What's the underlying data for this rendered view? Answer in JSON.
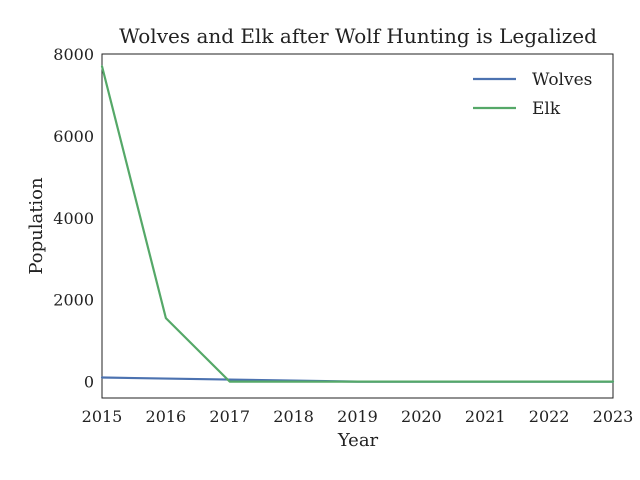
{
  "chart_data": {
    "type": "line",
    "title": "Wolves and Elk after Wolf Hunting is Legalized",
    "xlabel": "Year",
    "ylabel": "Population",
    "x": [
      2015,
      2016,
      2017,
      2018,
      2019,
      2020,
      2021,
      2022,
      2023
    ],
    "xlim": [
      2015,
      2023
    ],
    "ylim": [
      -400,
      8000
    ],
    "xticks": [
      "2015",
      "2016",
      "2017",
      "2018",
      "2019",
      "2020",
      "2021",
      "2022",
      "2023"
    ],
    "yticks": [
      {
        "value": 0,
        "label": "0"
      },
      {
        "value": 2000,
        "label": "2000"
      },
      {
        "value": 4000,
        "label": "4000"
      },
      {
        "value": 6000,
        "label": "6000"
      },
      {
        "value": 8000,
        "label": "8000"
      }
    ],
    "grid": false,
    "legend_position": "top-right",
    "series": [
      {
        "name": "Wolves",
        "color": "#4c72b0",
        "values": [
          100,
          75,
          50,
          25,
          0,
          0,
          0,
          0,
          0
        ]
      },
      {
        "name": "Elk",
        "color": "#55a868",
        "values": [
          7700,
          1550,
          0,
          0,
          0,
          0,
          0,
          0,
          0
        ]
      }
    ]
  }
}
